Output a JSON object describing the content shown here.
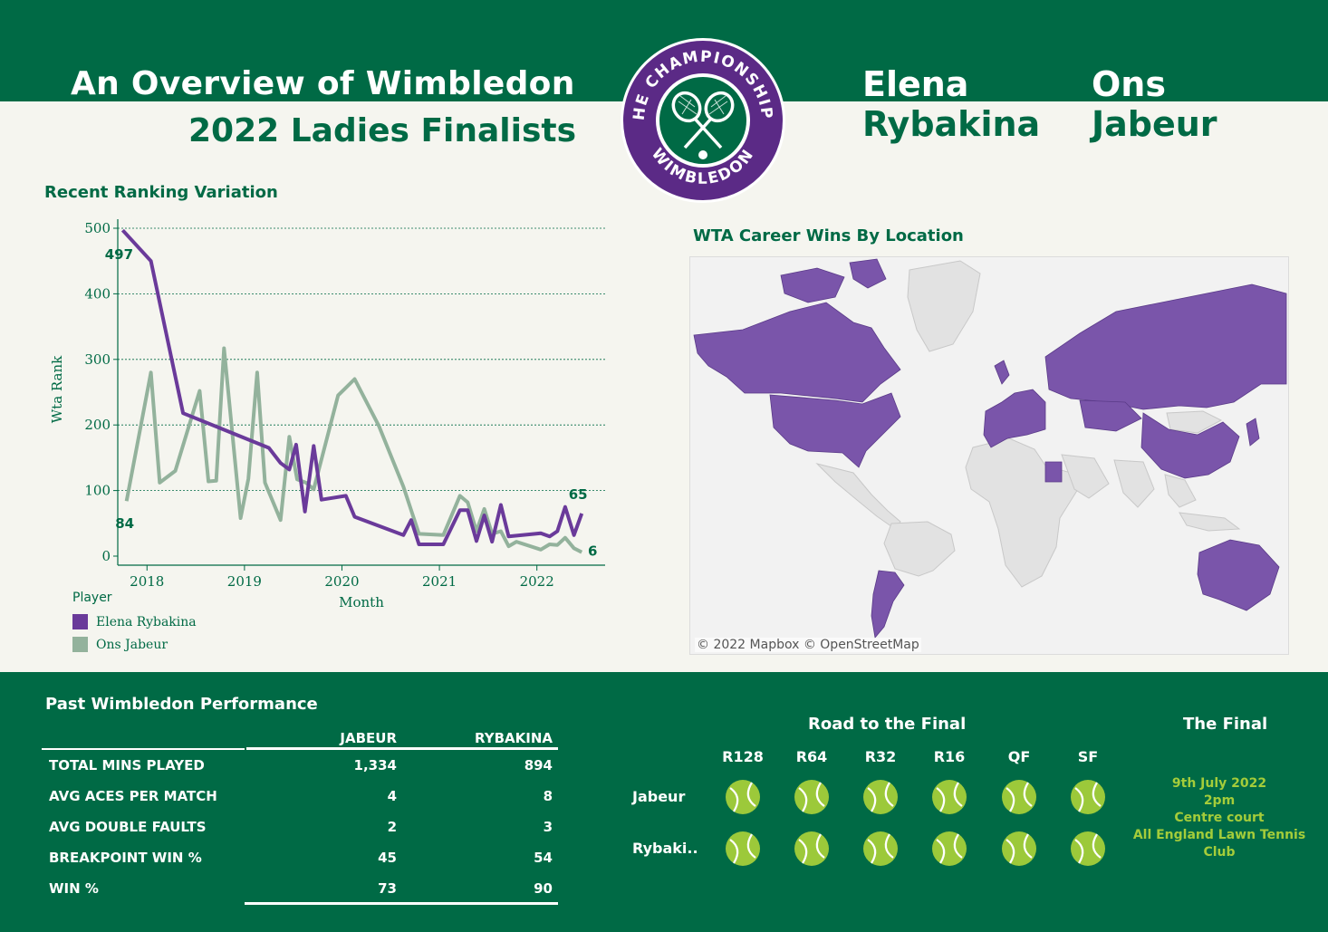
{
  "header": {
    "title_line1": "An Overview of Wimbledon",
    "title_line2": "2022 Ladies Finalists",
    "player1_first": "Elena",
    "player1_last": "Rybakina",
    "player2_first": "Ons",
    "player2_last": "Jabeur",
    "logo_text_top": "THE CHAMPIONSHIPS",
    "logo_text_bottom": "WIMBLEDON"
  },
  "colors": {
    "green": "#006a45",
    "purple": "#6a3a9a",
    "sage": "#93b29c",
    "ball": "#9cc93a"
  },
  "ranking_chart": {
    "section_title": "Recent Ranking Variation",
    "ylabel": "Wta Rank",
    "xlabel": "Month",
    "legend_title": "Player"
  },
  "map": {
    "section_title": "WTA Career Wins By Location",
    "credit": "© 2022 Mapbox  © OpenStreetMap"
  },
  "performance": {
    "section_title": "Past Wimbledon Performance",
    "columns": [
      "JABEUR",
      "RYBAKINA"
    ],
    "rows": [
      {
        "label": "TOTAL MINS PLAYED",
        "jabeur": "1,334",
        "rybakina": "894"
      },
      {
        "label": "AVG ACES PER MATCH",
        "jabeur": "4",
        "rybakina": "8"
      },
      {
        "label": "AVG DOUBLE FAULTS",
        "jabeur": "2",
        "rybakina": "3"
      },
      {
        "label": "BREAKPOINT WIN %",
        "jabeur": "45",
        "rybakina": "54"
      },
      {
        "label": "WIN %",
        "jabeur": "73",
        "rybakina": "90"
      }
    ]
  },
  "road": {
    "title": "Road to the Final",
    "rounds": [
      "R128",
      "R64",
      "R32",
      "R16",
      "QF",
      "SF"
    ],
    "players": [
      "Jabeur",
      "Rybaki.."
    ]
  },
  "final": {
    "title": "The Final",
    "date": "9th July 2022",
    "time": "2pm",
    "court": "Centre court",
    "venue": "All England Lawn Tennis Club"
  },
  "chart_data": {
    "type": "line",
    "title": "Recent Ranking Variation",
    "xlabel": "Month",
    "ylabel": "Wta Rank",
    "ylim": [
      0,
      500
    ],
    "yticks": [
      0,
      100,
      200,
      300,
      400,
      500
    ],
    "xlim": [
      2017.7,
      2022.7
    ],
    "xticks": [
      2018,
      2019,
      2020,
      2021,
      2022
    ],
    "grid": true,
    "legend": "bottom-left",
    "series": [
      {
        "name": "Elena Rybakina",
        "color": "#6a3a9a",
        "start_label": "497",
        "end_label": "65",
        "points": [
          [
            2017.75,
            497
          ],
          [
            2018.04,
            450
          ],
          [
            2018.37,
            218
          ],
          [
            2019.25,
            165
          ],
          [
            2019.37,
            142
          ],
          [
            2019.46,
            132
          ],
          [
            2019.53,
            170
          ],
          [
            2019.62,
            68
          ],
          [
            2019.71,
            168
          ],
          [
            2019.79,
            86
          ],
          [
            2020.04,
            92
          ],
          [
            2020.13,
            60
          ],
          [
            2020.63,
            32
          ],
          [
            2020.71,
            55
          ],
          [
            2020.79,
            18
          ],
          [
            2021.04,
            18
          ],
          [
            2021.21,
            70
          ],
          [
            2021.29,
            70
          ],
          [
            2021.38,
            23
          ],
          [
            2021.46,
            62
          ],
          [
            2021.54,
            22
          ],
          [
            2021.63,
            78
          ],
          [
            2021.71,
            30
          ],
          [
            2022.04,
            35
          ],
          [
            2022.13,
            30
          ],
          [
            2022.21,
            38
          ],
          [
            2022.29,
            75
          ],
          [
            2022.38,
            32
          ],
          [
            2022.46,
            65
          ]
        ]
      },
      {
        "name": "Ons Jabeur",
        "color": "#93b29c",
        "start_label": "84",
        "end_label": "6",
        "points": [
          [
            2017.79,
            84
          ],
          [
            2018.04,
            280
          ],
          [
            2018.13,
            112
          ],
          [
            2018.29,
            130
          ],
          [
            2018.54,
            252
          ],
          [
            2018.63,
            114
          ],
          [
            2018.71,
            115
          ],
          [
            2018.79,
            317
          ],
          [
            2018.96,
            58
          ],
          [
            2019.04,
            118
          ],
          [
            2019.13,
            280
          ],
          [
            2019.21,
            112
          ],
          [
            2019.37,
            55
          ],
          [
            2019.46,
            182
          ],
          [
            2019.54,
            117
          ],
          [
            2019.63,
            112
          ],
          [
            2019.71,
            102
          ],
          [
            2019.96,
            245
          ],
          [
            2020.13,
            270
          ],
          [
            2020.38,
            198
          ],
          [
            2020.63,
            106
          ],
          [
            2020.79,
            34
          ],
          [
            2021.04,
            32
          ],
          [
            2021.21,
            92
          ],
          [
            2021.29,
            82
          ],
          [
            2021.38,
            38
          ],
          [
            2021.46,
            72
          ],
          [
            2021.54,
            34
          ],
          [
            2021.63,
            38
          ],
          [
            2021.71,
            15
          ],
          [
            2021.79,
            22
          ],
          [
            2022.04,
            10
          ],
          [
            2022.13,
            18
          ],
          [
            2022.21,
            17
          ],
          [
            2022.29,
            28
          ],
          [
            2022.38,
            12
          ],
          [
            2022.46,
            6
          ]
        ]
      }
    ]
  }
}
